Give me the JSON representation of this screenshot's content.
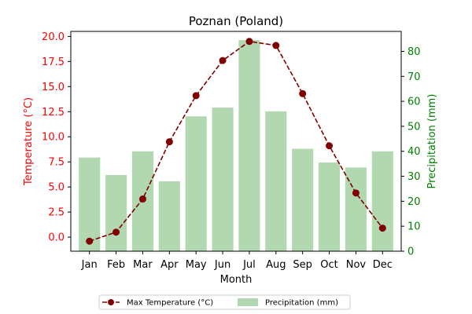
{
  "chart_data": {
    "type": "bar",
    "title": "Poznan (Poland)",
    "xlabel": "Month",
    "categories": [
      "Jan",
      "Feb",
      "Mar",
      "Apr",
      "May",
      "Jun",
      "Jul",
      "Aug",
      "Sep",
      "Oct",
      "Nov",
      "Dec"
    ],
    "left_axis": {
      "label": "Temperature (°C)",
      "ylim": [
        -1.4,
        20.5
      ],
      "ticks": [
        "0.0",
        "2.5",
        "5.0",
        "7.5",
        "10.0",
        "12.5",
        "15.0",
        "17.5",
        "20.0"
      ],
      "color": "#ff0000"
    },
    "right_axis": {
      "label": "Precipitation (mm)",
      "ylim": [
        0,
        88
      ],
      "ticks": [
        "0",
        "10",
        "20",
        "30",
        "40",
        "50",
        "60",
        "70",
        "80"
      ],
      "color": "#008000"
    },
    "series": [
      {
        "name": "Max Temperature (°C)",
        "kind": "line",
        "axis": "left",
        "color": "#800000",
        "linestyle": "dashed",
        "marker": "circle",
        "values": [
          -0.4,
          0.5,
          3.8,
          9.5,
          14.1,
          17.6,
          19.5,
          19.1,
          14.3,
          9.1,
          4.4,
          0.9
        ]
      },
      {
        "name": "Precipitation (mm)",
        "kind": "bar",
        "axis": "right",
        "color": "#b2d8b2",
        "values": [
          37.5,
          30.5,
          40,
          28,
          54,
          57.5,
          84.5,
          56,
          41,
          35.5,
          33.5,
          40
        ]
      }
    ],
    "legend": {
      "placement": "bottom-center",
      "columns": 2
    },
    "grid": false
  }
}
